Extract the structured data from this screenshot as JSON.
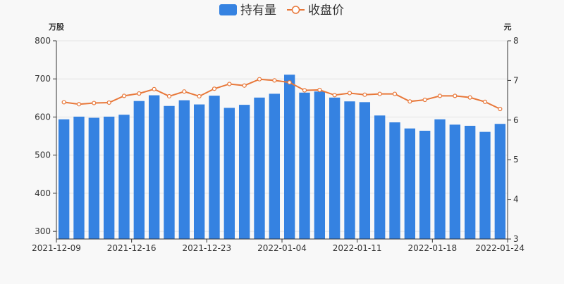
{
  "chart_data": {
    "type": "bar+line",
    "legend": [
      {
        "name": "持有量",
        "type": "bar",
        "color": "#3582e1"
      },
      {
        "name": "收盘价",
        "type": "line",
        "color": "#e8783a"
      }
    ],
    "legend_position": "top-center",
    "left_axis": {
      "unit_label": "万股",
      "ylim": [
        280,
        800
      ],
      "ticks": [
        300,
        400,
        500,
        600,
        700,
        800
      ]
    },
    "right_axis": {
      "unit_label": "元",
      "ylim": [
        3,
        8
      ],
      "ticks": [
        3,
        4,
        5,
        6,
        7,
        8
      ]
    },
    "x_tick_labels": [
      "2021-12-09",
      "2021-12-16",
      "2021-12-23",
      "2022-01-04",
      "2022-01-11",
      "2022-01-18",
      "2022-01-24"
    ],
    "x_tick_label_indices": [
      0,
      5,
      10,
      15,
      20,
      25,
      30
    ],
    "grid": true,
    "series": [
      {
        "name": "持有量",
        "axis": "left",
        "values": [
          594,
          601,
          598,
          601,
          606,
          642,
          657,
          629,
          644,
          633,
          656,
          624,
          632,
          651,
          661,
          711,
          664,
          667,
          651,
          641,
          639,
          604,
          586,
          570,
          564,
          594,
          580,
          577,
          561,
          582
        ]
      },
      {
        "name": "收盘价",
        "axis": "right",
        "values": [
          6.45,
          6.4,
          6.43,
          6.44,
          6.61,
          6.67,
          6.78,
          6.6,
          6.72,
          6.6,
          6.79,
          6.91,
          6.87,
          7.03,
          7.0,
          6.95,
          6.75,
          6.76,
          6.63,
          6.68,
          6.64,
          6.66,
          6.66,
          6.47,
          6.51,
          6.61,
          6.61,
          6.57,
          6.46,
          6.28
        ]
      }
    ]
  }
}
